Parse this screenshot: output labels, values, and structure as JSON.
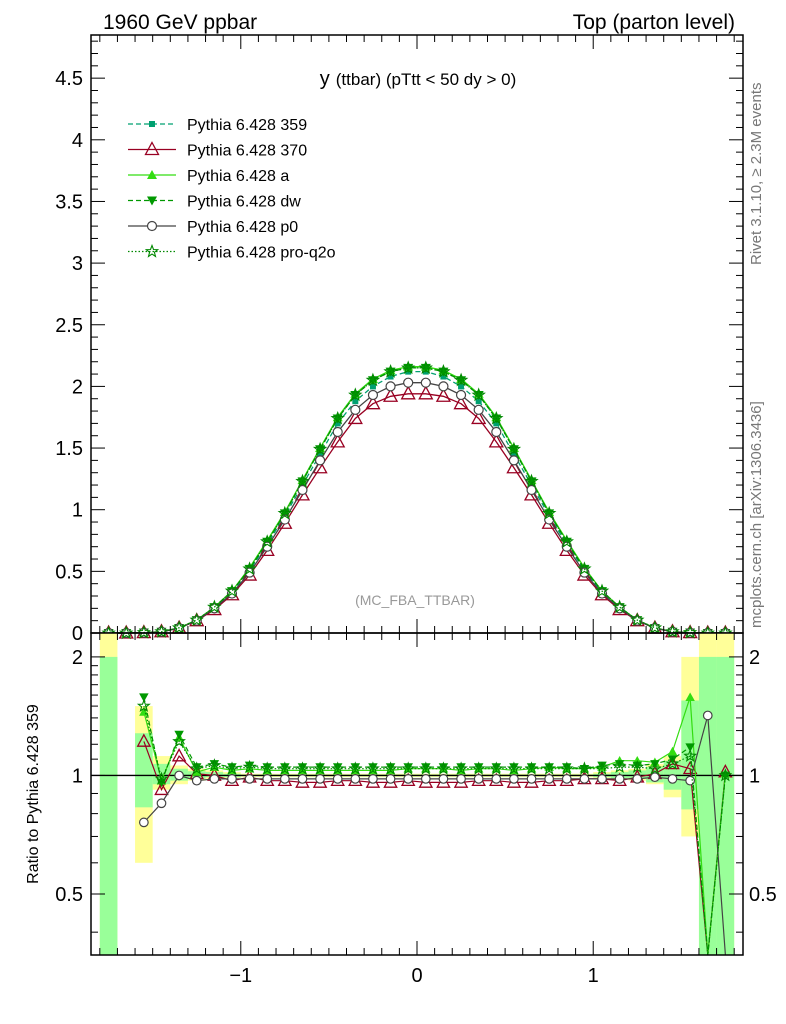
{
  "header": {
    "left": "1960 GeV ppbar",
    "right": "Top (parton level)"
  },
  "plot_title": {
    "var": "y",
    "rest": "(ttbar) (pTtt < 50 dy > 0)"
  },
  "side_texts": {
    "rivet": "Rivet 3.1.10, ≥ 2.3M events",
    "mcplots": "mcplots.cern.ch [arXiv:1306.3436]"
  },
  "analysis_label": "(MC_FBA_TTBAR)",
  "colors": {
    "band_yellow": "#ffff99",
    "band_green": "#99ff99",
    "s359": "#00a070",
    "s370": "#990022",
    "sa": "#33dd11",
    "sdw": "#009900",
    "sp0": "#444444",
    "spro": "#008800"
  },
  "chart_data": [
    {
      "type": "line",
      "panel": "main",
      "xlim": [
        -1.85,
        1.85
      ],
      "ylim": [
        0,
        4.85
      ],
      "yticks": [
        "0",
        "0.5",
        "1",
        "1.5",
        "2",
        "2.5",
        "3",
        "3.5",
        "4",
        "4.5"
      ],
      "x": [
        -1.75,
        -1.65,
        -1.55,
        -1.45,
        -1.35,
        -1.25,
        -1.15,
        -1.05,
        -0.95,
        -0.85,
        -0.75,
        -0.65,
        -0.55,
        -0.45,
        -0.35,
        -0.25,
        -0.15,
        -0.05,
        0.05,
        0.15,
        0.25,
        0.35,
        0.45,
        0.55,
        0.65,
        0.75,
        0.85,
        0.95,
        1.05,
        1.15,
        1.25,
        1.35,
        1.45,
        1.55,
        1.65,
        1.75
      ],
      "series": [
        {
          "name": "Pythia 6.428 359",
          "values": [
            0.0,
            0.0,
            0.003,
            0.01,
            0.04,
            0.1,
            0.2,
            0.33,
            0.51,
            0.72,
            0.95,
            1.2,
            1.45,
            1.7,
            1.88,
            2.0,
            2.08,
            2.12,
            2.12,
            2.08,
            2.0,
            1.88,
            1.7,
            1.45,
            1.2,
            0.95,
            0.72,
            0.51,
            0.33,
            0.2,
            0.1,
            0.04,
            0.01,
            0.003,
            0.0,
            0.0
          ]
        },
        {
          "name": "Pythia 6.428 370",
          "values": [
            0.0,
            0.0,
            0.003,
            0.01,
            0.04,
            0.1,
            0.19,
            0.31,
            0.47,
            0.67,
            0.89,
            1.12,
            1.34,
            1.55,
            1.74,
            1.86,
            1.92,
            1.94,
            1.94,
            1.92,
            1.86,
            1.74,
            1.55,
            1.34,
            1.12,
            0.89,
            0.67,
            0.47,
            0.31,
            0.19,
            0.1,
            0.04,
            0.01,
            0.003,
            0.0,
            0.0
          ]
        },
        {
          "name": "Pythia 6.428 a",
          "values": [
            0.0,
            0.0,
            0.004,
            0.01,
            0.042,
            0.105,
            0.21,
            0.34,
            0.53,
            0.75,
            0.98,
            1.24,
            1.5,
            1.75,
            1.94,
            2.06,
            2.13,
            2.16,
            2.16,
            2.13,
            2.06,
            1.94,
            1.75,
            1.5,
            1.24,
            0.98,
            0.75,
            0.53,
            0.34,
            0.21,
            0.105,
            0.042,
            0.01,
            0.004,
            0.0,
            0.0
          ]
        },
        {
          "name": "Pythia 6.428 dw",
          "values": [
            0.0,
            0.0,
            0.004,
            0.01,
            0.041,
            0.104,
            0.21,
            0.34,
            0.52,
            0.74,
            0.97,
            1.23,
            1.49,
            1.74,
            1.93,
            2.05,
            2.12,
            2.15,
            2.15,
            2.12,
            2.05,
            1.93,
            1.74,
            1.49,
            1.23,
            0.97,
            0.74,
            0.52,
            0.34,
            0.21,
            0.104,
            0.041,
            0.01,
            0.004,
            0.0,
            0.0
          ]
        },
        {
          "name": "Pythia 6.428 p0",
          "values": [
            0.0,
            0.0,
            0.002,
            0.01,
            0.04,
            0.1,
            0.2,
            0.32,
            0.49,
            0.7,
            0.92,
            1.16,
            1.4,
            1.63,
            1.81,
            1.93,
            2.0,
            2.03,
            2.03,
            2.0,
            1.93,
            1.81,
            1.63,
            1.4,
            1.16,
            0.92,
            0.7,
            0.49,
            0.32,
            0.2,
            0.1,
            0.04,
            0.01,
            0.002,
            0.0,
            0.0
          ]
        },
        {
          "name": "Pythia 6.428 pro-q2o",
          "values": [
            0.0,
            0.0,
            0.004,
            0.01,
            0.042,
            0.105,
            0.21,
            0.34,
            0.52,
            0.74,
            0.97,
            1.23,
            1.49,
            1.74,
            1.93,
            2.05,
            2.12,
            2.15,
            2.15,
            2.12,
            2.05,
            1.93,
            1.74,
            1.49,
            1.23,
            0.97,
            0.74,
            0.52,
            0.34,
            0.21,
            0.105,
            0.042,
            0.01,
            0.004,
            0.0,
            0.0
          ]
        }
      ]
    },
    {
      "type": "line",
      "panel": "ratio",
      "ylabel": "Ratio to Pythia 6.428 359",
      "xlim": [
        -1.85,
        1.85
      ],
      "ylim": [
        0.35,
        2.3
      ],
      "yticks": [
        "0.5",
        "1",
        "2"
      ],
      "xticks": [
        "−1",
        "0",
        "1"
      ],
      "xtick_values": [
        -1,
        0,
        1
      ],
      "ytick_values": [
        0.5,
        1,
        2
      ],
      "x": [
        -1.55,
        -1.45,
        -1.35,
        -1.25,
        -1.15,
        -1.05,
        -0.95,
        -0.85,
        -0.75,
        -0.65,
        -0.55,
        -0.45,
        -0.35,
        -0.25,
        -0.15,
        -0.05,
        0.05,
        0.15,
        0.25,
        0.35,
        0.45,
        0.55,
        0.65,
        0.75,
        0.85,
        0.95,
        1.05,
        1.15,
        1.25,
        1.35,
        1.45,
        1.55,
        1.65,
        1.75
      ],
      "bands": {
        "x_edges": [
          -1.8,
          -1.7,
          -1.6,
          -1.5,
          -1.4,
          -1.3,
          -1.2,
          -1.1,
          -1.0,
          1.0,
          1.1,
          1.2,
          1.3,
          1.4,
          1.5,
          1.6,
          1.7,
          1.8
        ],
        "yellow": [
          [
            0.35,
            2.3
          ],
          [
            0.35,
            0.35
          ],
          [
            0.6,
            1.5
          ],
          [
            0.92,
            1.12
          ],
          [
            0.95,
            1.06
          ],
          [
            0.97,
            1.04
          ],
          [
            0.98,
            1.03
          ],
          [
            0.985,
            1.02
          ],
          [
            0.99,
            1.01
          ],
          [
            0.985,
            1.02
          ],
          [
            0.98,
            1.03
          ],
          [
            0.97,
            1.04
          ],
          [
            0.95,
            1.07
          ],
          [
            0.88,
            1.12
          ],
          [
            0.7,
            2.0
          ],
          [
            0.35,
            2.3
          ],
          [
            0.35,
            2.3
          ]
        ],
        "green": [
          [
            0.35,
            2.0
          ],
          [
            0.35,
            0.35
          ],
          [
            0.83,
            1.28
          ],
          [
            0.95,
            1.07
          ],
          [
            0.97,
            1.04
          ],
          [
            0.98,
            1.025
          ],
          [
            0.99,
            1.02
          ],
          [
            0.99,
            1.01
          ],
          [
            0.995,
            1.005
          ],
          [
            0.99,
            1.01
          ],
          [
            0.985,
            1.02
          ],
          [
            0.98,
            1.03
          ],
          [
            0.96,
            1.05
          ],
          [
            0.92,
            1.09
          ],
          [
            0.82,
            1.55
          ],
          [
            0.35,
            2.0
          ],
          [
            0.35,
            2.0
          ]
        ]
      },
      "series": [
        {
          "name": "Pythia 6.428 370",
          "values": [
            1.22,
            0.92,
            1.12,
            1.01,
            1.0,
            0.97,
            0.99,
            0.97,
            0.97,
            0.96,
            0.96,
            0.97,
            0.97,
            0.96,
            0.96,
            0.97,
            0.96,
            0.96,
            0.96,
            0.97,
            0.97,
            0.96,
            0.96,
            0.97,
            0.97,
            0.98,
            0.98,
            0.97,
            0.99,
            1.01,
            1.07,
            1.04,
            0.3,
            1.02
          ]
        },
        {
          "name": "Pythia 6.428 a",
          "values": [
            1.45,
            0.97,
            1.25,
            1.02,
            1.05,
            1.03,
            1.04,
            1.03,
            1.03,
            1.03,
            1.03,
            1.03,
            1.03,
            1.03,
            1.03,
            1.04,
            1.04,
            1.04,
            1.03,
            1.04,
            1.04,
            1.03,
            1.04,
            1.05,
            1.04,
            1.04,
            1.05,
            1.09,
            1.09,
            1.08,
            1.15,
            1.58,
            0.0,
            1.01
          ]
        },
        {
          "name": "Pythia 6.428 dw",
          "values": [
            1.58,
            0.96,
            1.27,
            1.05,
            1.07,
            1.05,
            1.06,
            1.05,
            1.05,
            1.05,
            1.05,
            1.05,
            1.05,
            1.05,
            1.05,
            1.05,
            1.05,
            1.05,
            1.05,
            1.05,
            1.05,
            1.05,
            1.05,
            1.05,
            1.05,
            1.04,
            1.06,
            1.07,
            1.06,
            1.07,
            1.1,
            1.18,
            0.0,
            1.0
          ]
        },
        {
          "name": "Pythia 6.428 p0",
          "values": [
            0.76,
            0.85,
            1.0,
            0.97,
            0.98,
            0.98,
            0.98,
            0.98,
            0.98,
            0.98,
            0.98,
            0.98,
            0.98,
            0.98,
            0.98,
            0.98,
            0.98,
            0.98,
            0.98,
            0.98,
            0.98,
            0.98,
            0.98,
            0.98,
            0.98,
            0.98,
            0.98,
            0.98,
            0.98,
            0.99,
            0.98,
            0.97,
            1.42,
            0.0
          ]
        },
        {
          "name": "Pythia 6.428 pro-q2o",
          "values": [
            1.5,
            0.98,
            1.22,
            1.04,
            1.06,
            1.04,
            1.05,
            1.04,
            1.04,
            1.04,
            1.04,
            1.04,
            1.04,
            1.04,
            1.04,
            1.04,
            1.04,
            1.04,
            1.04,
            1.04,
            1.04,
            1.04,
            1.04,
            1.04,
            1.04,
            1.04,
            1.04,
            1.05,
            1.05,
            1.04,
            1.07,
            1.12,
            0.0,
            1.0
          ]
        }
      ]
    }
  ]
}
